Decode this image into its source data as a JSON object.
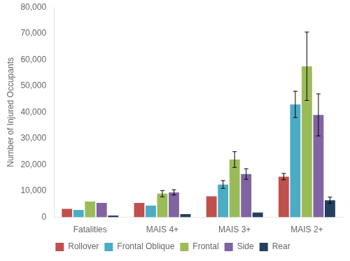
{
  "chart_data": {
    "type": "bar",
    "categories": [
      "Fatalities",
      "MAIS 4+",
      "MAIS 3+",
      "MAIS 2+"
    ],
    "series": [
      {
        "name": "Rollover",
        "color": "#C0504D",
        "values": [
          3200,
          5500,
          8000,
          15500
        ],
        "errors": [
          0,
          0,
          0,
          1200
        ]
      },
      {
        "name": "Frontal Oblique",
        "color": "#4BACC6",
        "values": [
          2800,
          4500,
          12500,
          43000
        ],
        "errors": [
          0,
          0,
          1500,
          5000
        ]
      },
      {
        "name": "Frontal",
        "color": "#9BBB59",
        "values": [
          6000,
          9000,
          22000,
          57500
        ],
        "errors": [
          0,
          1200,
          3000,
          13000
        ]
      },
      {
        "name": "Side",
        "color": "#8064A2",
        "values": [
          5500,
          9500,
          16500,
          39000
        ],
        "errors": [
          0,
          1000,
          2000,
          8000
        ]
      },
      {
        "name": "Rear",
        "color": "#243F60",
        "values": [
          700,
          1200,
          1800,
          6500
        ],
        "errors": [
          0,
          0,
          0,
          1200
        ]
      }
    ],
    "ylabel": "Number of Injured Occupants",
    "ylim": [
      0,
      80000
    ],
    "yticks": [
      0,
      {
        "value": 10000,
        "label": "10,000"
      },
      {
        "value": 20000,
        "label": "20,000"
      },
      {
        "value": 30000,
        "label": "30,000"
      },
      {
        "value": 40000,
        "label": "40,000"
      },
      {
        "value": 50000,
        "label": "50,000"
      },
      {
        "value": 60000,
        "label": "60,000"
      },
      {
        "value": 70000,
        "label": "70,000"
      },
      {
        "value": 80000,
        "label": "80,000"
      }
    ],
    "grid": false,
    "legend": "bottom"
  }
}
